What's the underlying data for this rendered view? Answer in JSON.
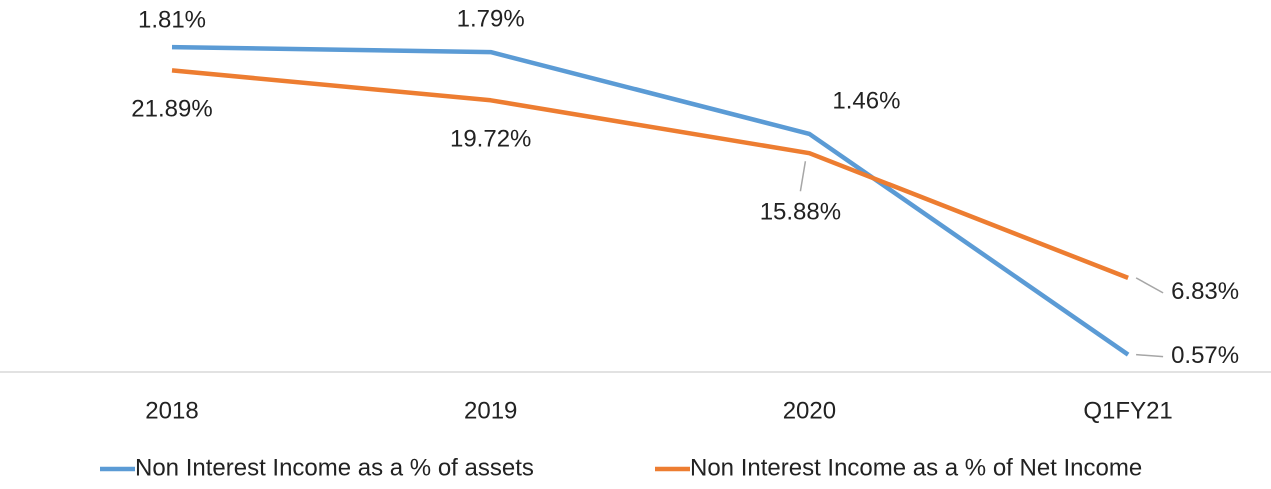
{
  "chart_data": {
    "type": "line",
    "categories": [
      "2018",
      "2019",
      "2020",
      "Q1FY21"
    ],
    "series": [
      {
        "name": "Non Interest Income as a % of assets",
        "color": "#5b9bd5",
        "values": [
          1.81,
          1.79,
          1.46,
          0.57
        ],
        "value_labels": [
          "1.81%",
          "1.79%",
          "1.46%",
          "0.57%"
        ]
      },
      {
        "name": "Non Interest Income as a % of Net Income",
        "color": "#ed7d31",
        "axis": "y2",
        "values": [
          21.89,
          19.72,
          15.88,
          6.83
        ],
        "value_labels": [
          "21.89%",
          "19.72%",
          "15.88%",
          "6.83%"
        ]
      }
    ],
    "ylim": [
      0.5,
      2.0
    ],
    "y2lim": [
      0,
      27
    ],
    "legend": "bottom"
  }
}
